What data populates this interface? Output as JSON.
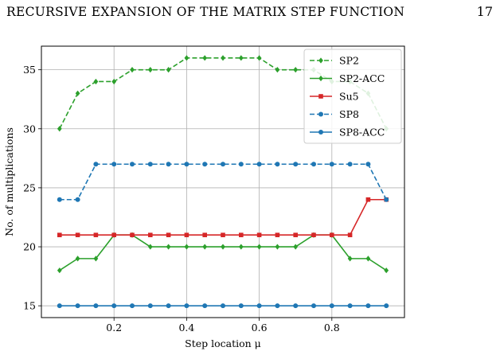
{
  "page": {
    "running_head": "RECURSIVE EXPANSION OF THE MATRIX STEP FUNCTION",
    "page_number": "17"
  },
  "chart_data": {
    "type": "line",
    "xlabel": "Step location μ",
    "ylabel": "No. of multiplications",
    "xlim": [
      0.0,
      1.0
    ],
    "ylim": [
      14,
      37
    ],
    "xticks": [
      0.2,
      0.4,
      0.6,
      0.8
    ],
    "xtick_labels": [
      "0.2",
      "0.4",
      "0.6",
      "0.8"
    ],
    "yticks": [
      15,
      20,
      25,
      30,
      35
    ],
    "ytick_labels": [
      "15",
      "20",
      "25",
      "30",
      "35"
    ],
    "grid": true,
    "legend_position": "top-right",
    "x": [
      0.05,
      0.1,
      0.15,
      0.2,
      0.25,
      0.3,
      0.35,
      0.4,
      0.45,
      0.5,
      0.55,
      0.6,
      0.65,
      0.7,
      0.75,
      0.8,
      0.85,
      0.9,
      0.95
    ],
    "series": [
      {
        "name": "SP2",
        "color": "#2ca02c",
        "dash": "dashed",
        "marker": "diamond",
        "values": [
          30,
          33,
          34,
          34,
          35,
          35,
          35,
          36,
          36,
          36,
          36,
          36,
          35,
          35,
          35,
          34,
          34,
          33,
          30
        ]
      },
      {
        "name": "SP2-ACC",
        "color": "#2ca02c",
        "dash": "solid",
        "marker": "diamond",
        "values": [
          18,
          19,
          19,
          21,
          21,
          20,
          20,
          20,
          20,
          20,
          20,
          20,
          20,
          20,
          21,
          21,
          19,
          19,
          18
        ]
      },
      {
        "name": "Su5",
        "color": "#d62728",
        "dash": "solid",
        "marker": "square",
        "values": [
          21,
          21,
          21,
          21,
          21,
          21,
          21,
          21,
          21,
          21,
          21,
          21,
          21,
          21,
          21,
          21,
          21,
          24,
          24
        ]
      },
      {
        "name": "SP8",
        "color": "#1f77b4",
        "dash": "dashed",
        "marker": "circle",
        "values": [
          24,
          24,
          27,
          27,
          27,
          27,
          27,
          27,
          27,
          27,
          27,
          27,
          27,
          27,
          27,
          27,
          27,
          27,
          24
        ]
      },
      {
        "name": "SP8-ACC",
        "color": "#1f77b4",
        "dash": "solid",
        "marker": "circle",
        "values": [
          15,
          15,
          15,
          15,
          15,
          15,
          15,
          15,
          15,
          15,
          15,
          15,
          15,
          15,
          15,
          15,
          15,
          15,
          15
        ]
      }
    ]
  }
}
